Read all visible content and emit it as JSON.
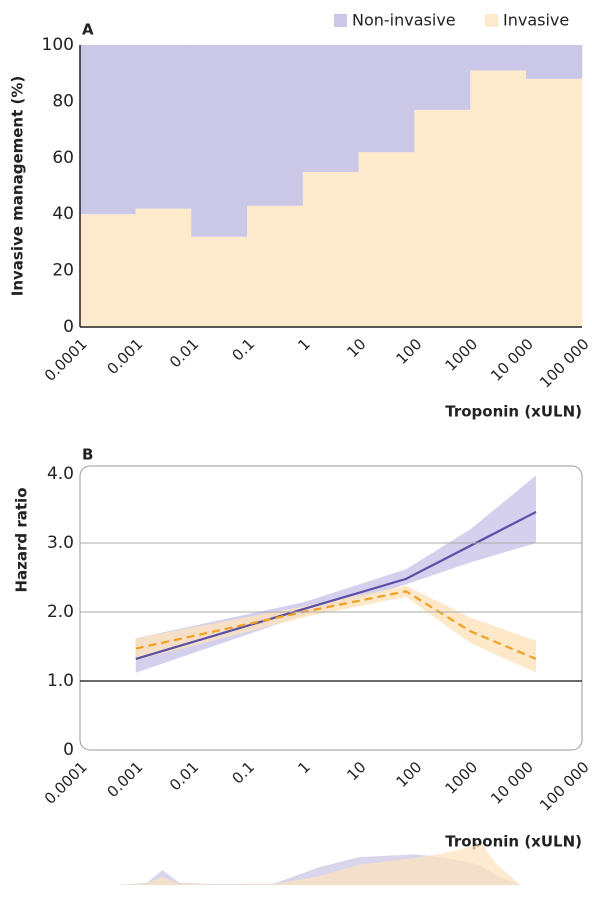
{
  "chart_data": [
    {
      "type": "histogram",
      "panel_label": "A",
      "y_label": "Invasive management (%)",
      "x_label": "Troponin (xULN)",
      "bins": [
        0.0001,
        0.001,
        0.01,
        0.1,
        1,
        10,
        100,
        1000,
        10000,
        100000
      ],
      "series": [
        {
          "name": "Non-invasive",
          "color": "#cbc7e7",
          "values": [
            60,
            58,
            68,
            57,
            45,
            38,
            23,
            9,
            12
          ]
        },
        {
          "name": "Invasive",
          "color": "#fde9cc",
          "values": [
            40,
            42,
            32,
            43,
            55,
            62,
            77,
            91,
            88
          ]
        }
      ],
      "stacked": true,
      "log_x": true,
      "legend": "top-right",
      "xlim": [
        0.0001,
        100000
      ],
      "xticks": [
        0.0001,
        0.001,
        0.01,
        0.1,
        1,
        10,
        100,
        1000,
        {
          "value": 10000,
          "label": "10 000"
        },
        {
          "value": 100000,
          "label": "100 000"
        }
      ],
      "ylim": [
        0,
        100
      ],
      "yticks": [
        0,
        20,
        40,
        60,
        80,
        100
      ]
    },
    {
      "type": "line",
      "panel_label": "B",
      "y_label": "Hazard ratio",
      "x_label": "Troponin (xULN)",
      "x": [
        0.001,
        1,
        70,
        1000,
        15000
      ],
      "series": [
        {
          "color": "#5b4fa6",
          "band_color": "#c9c4e8",
          "dashed": false,
          "values": [
            1.32,
            2.04,
            2.48,
            2.96,
            3.45
          ],
          "lower": [
            1.12,
            1.95,
            2.4,
            2.72,
            3.0
          ],
          "upper": [
            1.62,
            2.14,
            2.62,
            3.2,
            3.98
          ]
        },
        {
          "color": "#f0a020",
          "band_color": "#fde3bd",
          "dashed": true,
          "values": [
            1.47,
            2.0,
            2.3,
            1.72,
            1.32
          ],
          "lower": [
            1.3,
            1.92,
            2.22,
            1.55,
            1.12
          ],
          "upper": [
            1.62,
            2.08,
            2.38,
            1.92,
            1.58
          ]
        }
      ],
      "log_x": true,
      "grid": true,
      "reference_line": 1,
      "xlim": [
        0.0001,
        100000
      ],
      "xticks": [
        0.0001,
        0.001,
        0.01,
        0.1,
        1,
        10,
        100,
        1000,
        {
          "value": 10000,
          "label": "10 000"
        },
        {
          "value": 100000,
          "label": "100 000"
        }
      ],
      "ylim": [
        0,
        4
      ],
      "yticks": [
        0,
        {
          "value": 1,
          "label": "1.0"
        },
        {
          "value": 2,
          "label": "2.0"
        },
        {
          "value": 3,
          "label": "3.0"
        },
        {
          "value": 4,
          "label": "4.0"
        }
      ]
    },
    {
      "type": "area",
      "log_x": true,
      "xlim": [
        0.0001,
        100000
      ],
      "ylim": [
        0,
        1
      ],
      "x": [
        0.0005,
        0.0016,
        0.003,
        0.006,
        0.03,
        0.3,
        2,
        10,
        100,
        300,
        1000,
        1600,
        3000,
        8000
      ],
      "series": [
        {
          "color": "#cbc7e7",
          "values": [
            0,
            0.05,
            0.33,
            0.05,
            0.02,
            0.03,
            0.4,
            0.62,
            0.68,
            0.62,
            0.5,
            0.42,
            0.2,
            0
          ]
        },
        {
          "color": "#fde3bd",
          "values": [
            0,
            0.03,
            0.18,
            0.03,
            0.01,
            0.02,
            0.2,
            0.45,
            0.6,
            0.7,
            0.85,
            0.9,
            0.45,
            0
          ]
        }
      ]
    }
  ]
}
